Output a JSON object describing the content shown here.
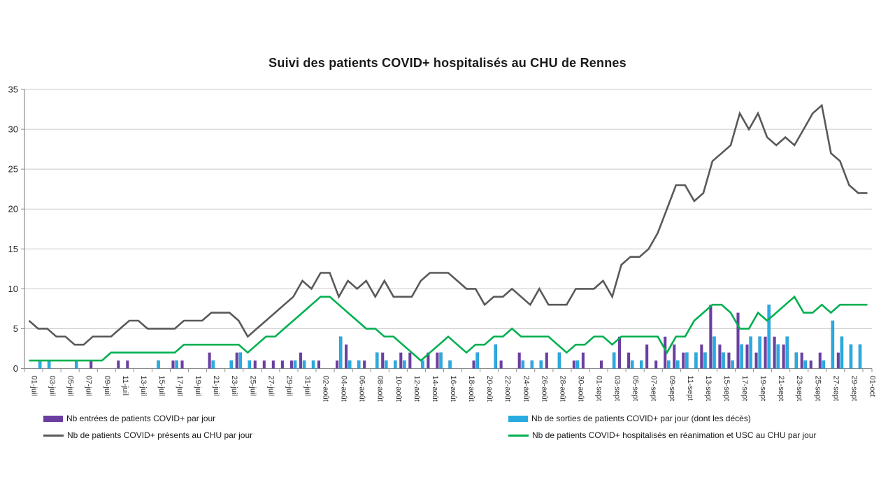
{
  "title": "Suivi des patients COVID+ hospitalisés au CHU de Rennes",
  "colors": {
    "entrees": "#6B3FA0",
    "sorties": "#29ABE2",
    "presents": "#595959",
    "rea": "#00B050",
    "grid": "#C9C9C9",
    "axis": "#8C8C8C",
    "tick_text": "#333333"
  },
  "legend": {
    "items": [
      {
        "label": "Nb entrées de patients COVID+ par jour",
        "type": "bar",
        "series": "entrees"
      },
      {
        "label": "Nb de sorties de patients COVID+ par jour (dont les décès)",
        "type": "bar",
        "series": "sorties"
      },
      {
        "label": "Nb de patients COVID+ présents au CHU par jour",
        "type": "line",
        "series": "presents"
      },
      {
        "label": "Nb de patients COVID+ hospitalisés en réanimation et USC au CHU par jour",
        "type": "line",
        "series": "rea"
      }
    ]
  },
  "chart_data": {
    "type": "combo-bar-line",
    "title": "Suivi des patients COVID+ hospitalisés au CHU de Rennes",
    "xlabel": "",
    "ylabel": "",
    "ylim": [
      0,
      35
    ],
    "ytick_step": 5,
    "y_tick_labels": [
      "0",
      "5",
      "10",
      "15",
      "20",
      "25",
      "30",
      "35"
    ],
    "grid": true,
    "legend_position": "bottom",
    "x_days_total": 93,
    "x_tick_labels": [
      "01-juil",
      "03-juil",
      "05-juil",
      "07-juil",
      "09-juil",
      "11-juil",
      "13-juil",
      "15-juil",
      "17-juil",
      "19-juil",
      "21-juil",
      "23-juil",
      "25-juil",
      "27-juil",
      "29-juil",
      "31-juil",
      "02-août",
      "04-août",
      "06-août",
      "08-août",
      "10-août",
      "12-août",
      "14-août",
      "16-août",
      "18-août",
      "20-août",
      "22-août",
      "24-août",
      "26-août",
      "28-août",
      "30-août",
      "01-sept",
      "03-sept",
      "05-sept",
      "07-sept",
      "09-sept",
      "11-sept",
      "13-sept",
      "15-sept",
      "17-sept",
      "19-sept",
      "21-sept",
      "23-sept",
      "25-sept",
      "27-sept",
      "29-sept",
      "01-oct"
    ],
    "series": [
      {
        "name": "Nb entrées de patients COVID+ par jour",
        "type": "bar",
        "color_key": "entrees",
        "values": [
          0,
          0,
          0,
          0,
          0,
          0,
          0,
          1,
          0,
          0,
          1,
          1,
          0,
          0,
          0,
          0,
          1,
          1,
          0,
          0,
          2,
          0,
          0,
          2,
          0,
          1,
          1,
          1,
          1,
          1,
          2,
          0,
          1,
          0,
          1,
          3,
          0,
          1,
          0,
          2,
          0,
          2,
          2,
          0,
          2,
          2,
          0,
          0,
          0,
          1,
          0,
          0,
          1,
          0,
          2,
          0,
          0,
          2,
          0,
          0,
          1,
          2,
          0,
          1,
          0,
          4,
          2,
          0,
          3,
          1,
          4,
          3,
          2,
          0,
          3,
          8,
          3,
          2,
          7,
          3,
          2,
          4,
          4,
          3,
          0,
          2,
          1,
          2,
          0,
          2,
          0,
          0,
          0
        ]
      },
      {
        "name": "Nb de sorties de patients COVID+ par jour (dont les décès)",
        "type": "bar",
        "color_key": "sorties",
        "values": [
          0,
          1,
          1,
          0,
          0,
          1,
          0,
          0,
          0,
          0,
          0,
          0,
          0,
          0,
          1,
          0,
          1,
          0,
          0,
          0,
          1,
          0,
          1,
          2,
          1,
          0,
          0,
          0,
          0,
          1,
          1,
          1,
          0,
          0,
          4,
          1,
          1,
          0,
          2,
          1,
          1,
          1,
          0,
          1,
          0,
          2,
          1,
          0,
          0,
          2,
          0,
          3,
          0,
          0,
          1,
          1,
          1,
          0,
          2,
          0,
          1,
          0,
          0,
          0,
          2,
          0,
          1,
          1,
          0,
          0,
          1,
          1,
          2,
          2,
          2,
          4,
          2,
          1,
          3,
          4,
          4,
          8,
          3,
          4,
          2,
          1,
          0,
          1,
          6,
          4,
          3,
          3,
          0
        ]
      },
      {
        "name": "Nb de patients COVID+ présents au CHU par jour",
        "type": "line",
        "color_key": "presents",
        "values": [
          6,
          5,
          5,
          4,
          4,
          3,
          3,
          4,
          4,
          4,
          5,
          6,
          6,
          5,
          5,
          5,
          5,
          6,
          6,
          6,
          7,
          7,
          7,
          6,
          4,
          5,
          6,
          7,
          8,
          9,
          11,
          10,
          12,
          12,
          9,
          11,
          10,
          11,
          9,
          11,
          9,
          9,
          9,
          11,
          12,
          12,
          12,
          11,
          10,
          10,
          8,
          9,
          9,
          10,
          9,
          8,
          10,
          8,
          8,
          8,
          10,
          10,
          10,
          11,
          9,
          13,
          14,
          14,
          15,
          17,
          20,
          23,
          23,
          21,
          22,
          26,
          27,
          28,
          32,
          30,
          32,
          29,
          28,
          29,
          28,
          30,
          32,
          33,
          27,
          26,
          23,
          22,
          22
        ]
      },
      {
        "name": "Nb de patients COVID+ hospitalisés en réanimation et USC au CHU par jour",
        "type": "line",
        "color_key": "rea",
        "values": [
          1,
          1,
          1,
          1,
          1,
          1,
          1,
          1,
          1,
          2,
          2,
          2,
          2,
          2,
          2,
          2,
          2,
          3,
          3,
          3,
          3,
          3,
          3,
          3,
          2,
          3,
          4,
          4,
          5,
          6,
          7,
          8,
          9,
          9,
          8,
          7,
          6,
          5,
          5,
          4,
          4,
          3,
          2,
          1,
          2,
          3,
          4,
          3,
          2,
          3,
          3,
          4,
          4,
          5,
          4,
          4,
          4,
          4,
          3,
          2,
          3,
          3,
          4,
          4,
          3,
          4,
          4,
          4,
          4,
          4,
          2,
          4,
          4,
          6,
          7,
          8,
          8,
          7,
          5,
          5,
          7,
          6,
          7,
          8,
          9,
          7,
          7,
          8,
          7,
          8,
          8,
          8,
          8
        ]
      }
    ]
  }
}
